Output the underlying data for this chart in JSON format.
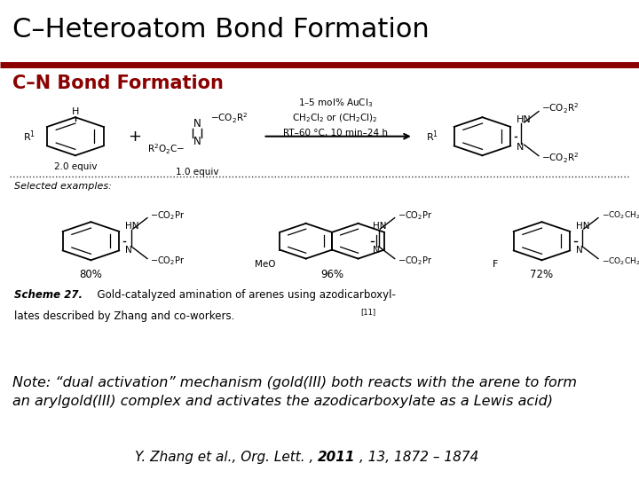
{
  "title": "C–Heteroatom Bond Formation",
  "subtitle": "C–N Bond Formation",
  "title_color": "#000000",
  "subtitle_color": "#8B0000",
  "rule_color": "#8B0000",
  "bg_color": "#FFFFFF",
  "title_fontsize": 22,
  "subtitle_fontsize": 15,
  "note_line1": "Note: “dual activation” mechanism (gold(III) both reacts with the arene to form",
  "note_line2": "an arylgold(III) complex and activates the azodicarboxylate as a Lewis acid)",
  "note_fontsize": 11.5,
  "citation_part1": "Y. Zhang et al., Org. Lett. , ",
  "citation_year": "2011",
  "citation_part2": ", 13, 1872 – 1874",
  "citation_fontsize": 11,
  "scheme_caption1": "Scheme 27.",
  "scheme_caption2": "  Gold-catalyzed amination of arenes using azodicarboxyl-",
  "scheme_caption3": "lates described by Zhang and co-workers.",
  "scheme_caption_super": "[11]"
}
